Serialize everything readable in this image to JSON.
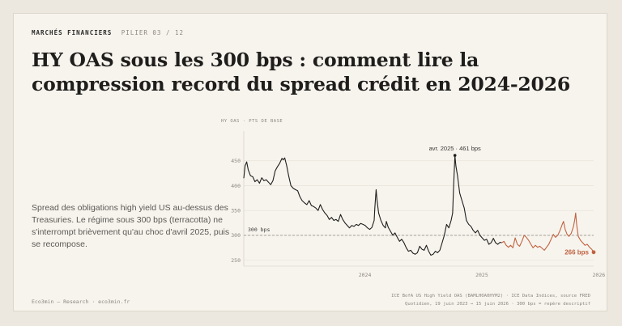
{
  "header": {
    "kicker": "MARCHÉS FINANCIERS",
    "pillar": "PILIER 03 / 12",
    "title": "HY OAS sous les 300 bps : comment lire la compression record du spread crédit en 2024-2026"
  },
  "description": "Spread des obligations high yield US au-dessus des Treasuries. Le régime sous 300 bps (terracotta) ne s'interrompt brièvement qu'au choc d'avril 2025, puis se recompose.",
  "footer": {
    "brand": "Eco3min — Research · eco3min.fr",
    "source_line1": "ICE BofA US High Yield OAS (BAMLH0A0HYM2) · ICE Data Indices, source FRED",
    "source_line2": "Quotidien, 19 juin 2023 → 15 juin 2026 · 300 bps = repère descriptif"
  },
  "colors": {
    "line": "#1f1e1c",
    "regime": "#c0623f",
    "grid": "#e4dfd6",
    "threshold": "#9a958d"
  },
  "chart_data": {
    "type": "line",
    "ylabel": "HY OAS · PTS DE BASE",
    "ylim": [
      238,
      510
    ],
    "y_ticks": [
      250,
      300,
      350,
      400,
      450
    ],
    "x_range": [
      "2023-06-19",
      "2026-06-15"
    ],
    "x_ticks": [
      "2024",
      "2025",
      "2026"
    ],
    "threshold": {
      "value": 300,
      "label": "300 bps"
    },
    "peak": {
      "date": "2025-04-08",
      "value": 461,
      "label": "avr. 2025 · 461 bps"
    },
    "last": {
      "date": "2026-06-15",
      "value": 266,
      "label": "266 bps"
    },
    "regime_start": "2025-09-01",
    "grid": true,
    "series": [
      {
        "points": [
          [
            "2023-06-19",
            415
          ],
          [
            "2023-06-23",
            440
          ],
          [
            "2023-06-28",
            448
          ],
          [
            "2023-07-03",
            432
          ],
          [
            "2023-07-10",
            420
          ],
          [
            "2023-07-17",
            418
          ],
          [
            "2023-07-24",
            408
          ],
          [
            "2023-07-31",
            412
          ],
          [
            "2023-08-07",
            405
          ],
          [
            "2023-08-14",
            416
          ],
          [
            "2023-08-21",
            410
          ],
          [
            "2023-08-28",
            412
          ],
          [
            "2023-09-04",
            407
          ],
          [
            "2023-09-11",
            402
          ],
          [
            "2023-09-18",
            410
          ],
          [
            "2023-09-25",
            430
          ],
          [
            "2023-10-02",
            438
          ],
          [
            "2023-10-09",
            445
          ],
          [
            "2023-10-16",
            455
          ],
          [
            "2023-10-20",
            452
          ],
          [
            "2023-10-25",
            456
          ],
          [
            "2023-10-31",
            440
          ],
          [
            "2023-11-06",
            420
          ],
          [
            "2023-11-13",
            400
          ],
          [
            "2023-11-20",
            395
          ],
          [
            "2023-11-27",
            392
          ],
          [
            "2023-12-04",
            390
          ],
          [
            "2023-12-11",
            378
          ],
          [
            "2023-12-18",
            370
          ],
          [
            "2023-12-26",
            365
          ],
          [
            "2024-01-02",
            362
          ],
          [
            "2024-01-09",
            370
          ],
          [
            "2024-01-16",
            360
          ],
          [
            "2024-01-23",
            358
          ],
          [
            "2024-01-30",
            355
          ],
          [
            "2024-02-06",
            350
          ],
          [
            "2024-02-13",
            362
          ],
          [
            "2024-02-20",
            352
          ],
          [
            "2024-02-27",
            345
          ],
          [
            "2024-03-05",
            340
          ],
          [
            "2024-03-12",
            332
          ],
          [
            "2024-03-19",
            336
          ],
          [
            "2024-03-26",
            330
          ],
          [
            "2024-04-02",
            332
          ],
          [
            "2024-04-09",
            328
          ],
          [
            "2024-04-16",
            342
          ],
          [
            "2024-04-23",
            332
          ],
          [
            "2024-04-30",
            325
          ],
          [
            "2024-05-07",
            320
          ],
          [
            "2024-05-14",
            315
          ],
          [
            "2024-05-21",
            320
          ],
          [
            "2024-05-28",
            318
          ],
          [
            "2024-06-04",
            322
          ],
          [
            "2024-06-11",
            320
          ],
          [
            "2024-06-18",
            324
          ],
          [
            "2024-06-25",
            322
          ],
          [
            "2024-07-02",
            320
          ],
          [
            "2024-07-09",
            315
          ],
          [
            "2024-07-16",
            312
          ],
          [
            "2024-07-23",
            316
          ],
          [
            "2024-07-30",
            330
          ],
          [
            "2024-08-01",
            355
          ],
          [
            "2024-08-05",
            392
          ],
          [
            "2024-08-08",
            370
          ],
          [
            "2024-08-13",
            345
          ],
          [
            "2024-08-20",
            330
          ],
          [
            "2024-08-27",
            320
          ],
          [
            "2024-09-03",
            315
          ],
          [
            "2024-09-06",
            328
          ],
          [
            "2024-09-12",
            316
          ],
          [
            "2024-09-19",
            308
          ],
          [
            "2024-09-26",
            300
          ],
          [
            "2024-10-03",
            305
          ],
          [
            "2024-10-10",
            296
          ],
          [
            "2024-10-17",
            288
          ],
          [
            "2024-10-24",
            292
          ],
          [
            "2024-10-31",
            285
          ],
          [
            "2024-11-07",
            275
          ],
          [
            "2024-11-14",
            268
          ],
          [
            "2024-11-21",
            270
          ],
          [
            "2024-11-28",
            264
          ],
          [
            "2024-12-05",
            262
          ],
          [
            "2024-12-12",
            265
          ],
          [
            "2024-12-19",
            278
          ],
          [
            "2024-12-26",
            272
          ],
          [
            "2025-01-02",
            270
          ],
          [
            "2025-01-09",
            280
          ],
          [
            "2025-01-16",
            268
          ],
          [
            "2025-01-23",
            260
          ],
          [
            "2025-01-30",
            262
          ],
          [
            "2025-02-06",
            268
          ],
          [
            "2025-02-13",
            265
          ],
          [
            "2025-02-20",
            270
          ],
          [
            "2025-02-27",
            285
          ],
          [
            "2025-03-06",
            300
          ],
          [
            "2025-03-13",
            322
          ],
          [
            "2025-03-20",
            315
          ],
          [
            "2025-03-27",
            330
          ],
          [
            "2025-04-01",
            345
          ],
          [
            "2025-04-04",
            400
          ],
          [
            "2025-04-08",
            461
          ],
          [
            "2025-04-11",
            440
          ],
          [
            "2025-04-16",
            420
          ],
          [
            "2025-04-23",
            385
          ],
          [
            "2025-04-30",
            370
          ],
          [
            "2025-05-07",
            355
          ],
          [
            "2025-05-14",
            330
          ],
          [
            "2025-05-21",
            322
          ],
          [
            "2025-05-28",
            318
          ],
          [
            "2025-06-04",
            310
          ],
          [
            "2025-06-11",
            305
          ],
          [
            "2025-06-18",
            310
          ],
          [
            "2025-06-25",
            300
          ],
          [
            "2025-07-02",
            295
          ],
          [
            "2025-07-09",
            290
          ],
          [
            "2025-07-16",
            292
          ],
          [
            "2025-07-23",
            282
          ],
          [
            "2025-07-30",
            285
          ],
          [
            "2025-08-06",
            294
          ],
          [
            "2025-08-13",
            285
          ],
          [
            "2025-08-20",
            282
          ],
          [
            "2025-08-27",
            286
          ],
          [
            "2025-09-01",
            285
          ],
          [
            "2025-09-08",
            288
          ],
          [
            "2025-09-15",
            280
          ],
          [
            "2025-09-22",
            276
          ],
          [
            "2025-09-29",
            280
          ],
          [
            "2025-10-06",
            275
          ],
          [
            "2025-10-13",
            295
          ],
          [
            "2025-10-20",
            282
          ],
          [
            "2025-10-27",
            278
          ],
          [
            "2025-11-03",
            288
          ],
          [
            "2025-11-10",
            300
          ],
          [
            "2025-11-17",
            296
          ],
          [
            "2025-11-24",
            290
          ],
          [
            "2025-12-01",
            282
          ],
          [
            "2025-12-08",
            275
          ],
          [
            "2025-12-15",
            280
          ],
          [
            "2025-12-22",
            276
          ],
          [
            "2025-12-29",
            278
          ],
          [
            "2026-01-05",
            274
          ],
          [
            "2026-01-12",
            270
          ],
          [
            "2026-01-19",
            276
          ],
          [
            "2026-01-26",
            282
          ],
          [
            "2026-02-02",
            292
          ],
          [
            "2026-02-09",
            302
          ],
          [
            "2026-02-16",
            296
          ],
          [
            "2026-02-23",
            300
          ],
          [
            "2026-03-02",
            310
          ],
          [
            "2026-03-09",
            322
          ],
          [
            "2026-03-13",
            328
          ],
          [
            "2026-03-18",
            312
          ],
          [
            "2026-03-24",
            302
          ],
          [
            "2026-03-30",
            298
          ],
          [
            "2026-04-06",
            304
          ],
          [
            "2026-04-13",
            318
          ],
          [
            "2026-04-17",
            332
          ],
          [
            "2026-04-20",
            345
          ],
          [
            "2026-04-23",
            322
          ],
          [
            "2026-04-28",
            298
          ],
          [
            "2026-05-05",
            290
          ],
          [
            "2026-05-12",
            285
          ],
          [
            "2026-05-19",
            280
          ],
          [
            "2026-05-26",
            282
          ],
          [
            "2026-06-02",
            276
          ],
          [
            "2026-06-09",
            272
          ],
          [
            "2026-06-15",
            266
          ]
        ]
      }
    ]
  }
}
